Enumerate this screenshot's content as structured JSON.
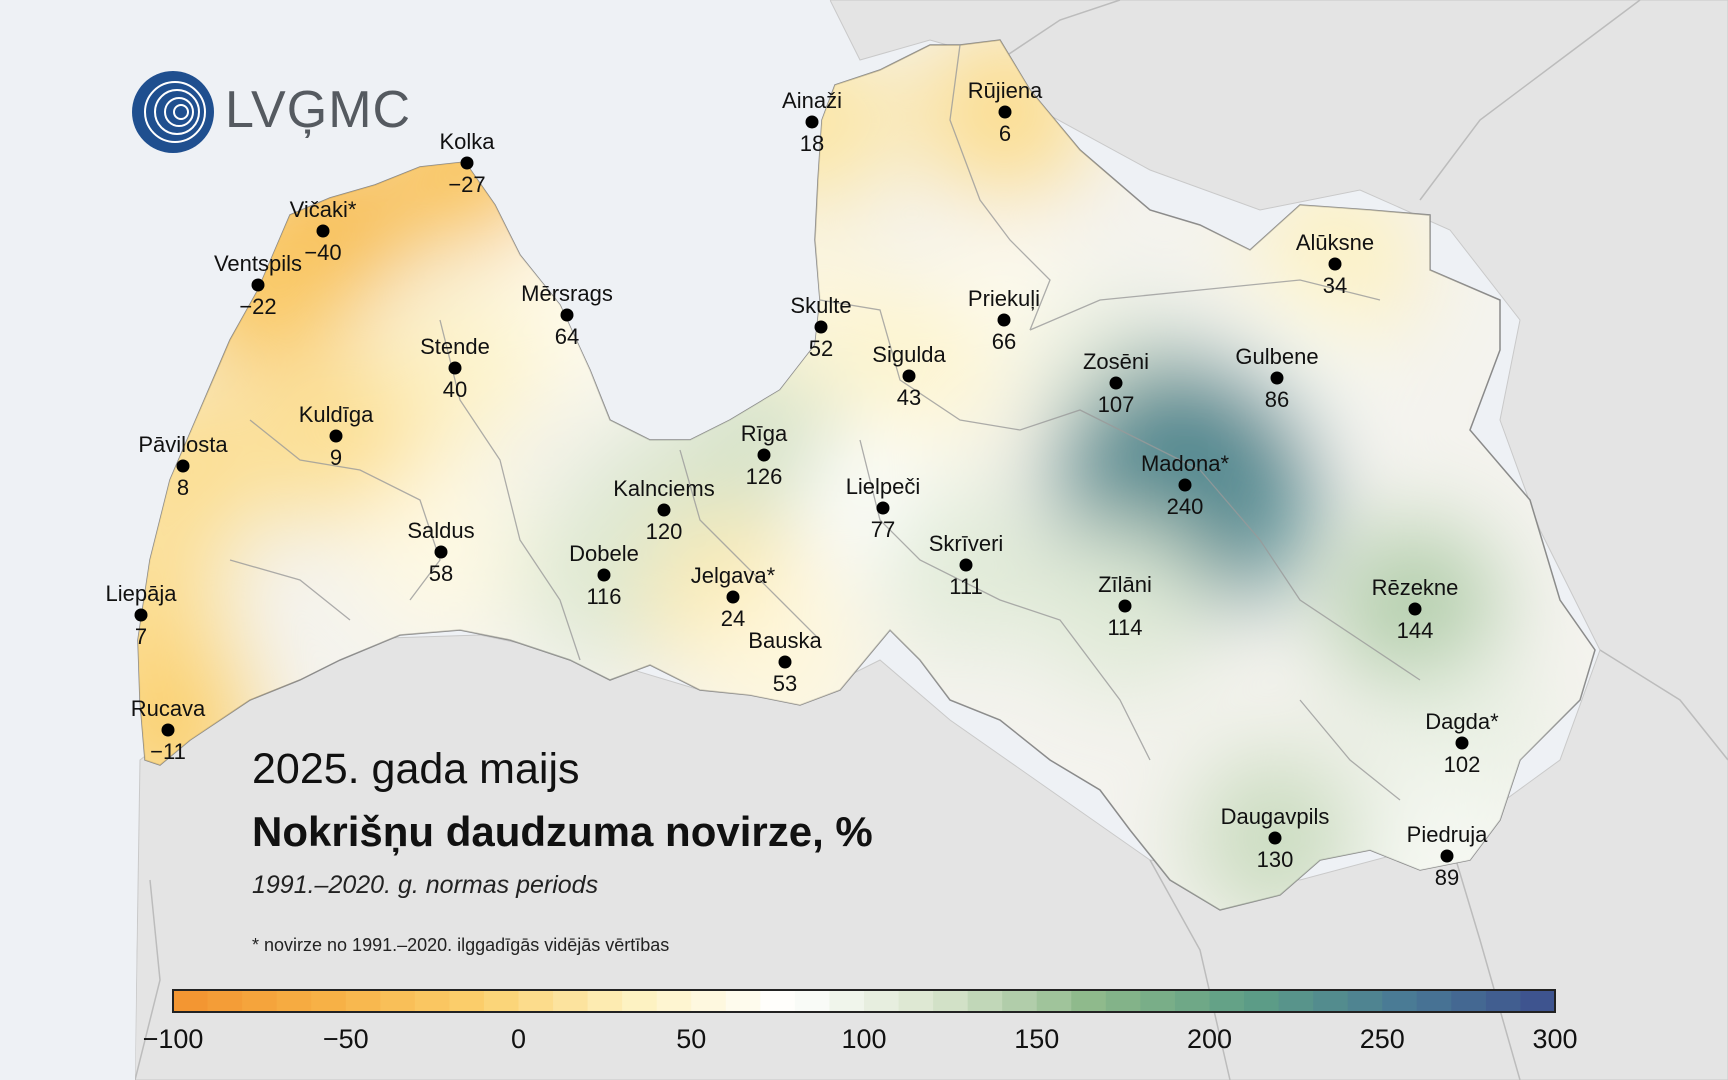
{
  "logo": {
    "text": "LVĢMC"
  },
  "title": "2025. gada maijs",
  "subtitle": "Nokrišņu daudzuma novirze, %",
  "period": "1991.–2020. g. normas periods",
  "footnote": "* novirze no 1991.–2020. ilggadīgās vidējās vērtības",
  "legend": {
    "min": -100,
    "max": 300,
    "ticks": [
      "−100",
      "−50",
      "0",
      "50",
      "100",
      "150",
      "200",
      "250",
      "300"
    ],
    "tick_values": [
      -100,
      -50,
      0,
      50,
      100,
      150,
      200,
      250,
      300
    ],
    "colors": [
      "#f29330",
      "#f7b145",
      "#fbd06e",
      "#fdf1c0",
      "#ffffff",
      "#d7e4cb",
      "#8cb88a",
      "#5e9f86",
      "#4a7b95",
      "#3c4f8e"
    ]
  },
  "stations": [
    {
      "id": "ainazi",
      "name": "Ainaži",
      "value": "18",
      "v": 18
    },
    {
      "id": "rujiena",
      "name": "Rūjiena",
      "value": "6",
      "v": 6
    },
    {
      "id": "kolka",
      "name": "Kolka",
      "value": "−27",
      "v": -27
    },
    {
      "id": "vicaki",
      "name": "Vičaki*",
      "value": "−40",
      "v": -40
    },
    {
      "id": "ventspils",
      "name": "Ventspils",
      "value": "−22",
      "v": -22
    },
    {
      "id": "mersrags",
      "name": "Mērsrags",
      "value": "64",
      "v": 64
    },
    {
      "id": "skulte",
      "name": "Skulte",
      "value": "52",
      "v": 52
    },
    {
      "id": "priekuli",
      "name": "Priekuļi",
      "value": "66",
      "v": 66
    },
    {
      "id": "aluksne",
      "name": "Alūksne",
      "value": "34",
      "v": 34
    },
    {
      "id": "stende",
      "name": "Stende",
      "value": "40",
      "v": 40
    },
    {
      "id": "sigulda",
      "name": "Sigulda",
      "value": "43",
      "v": 43
    },
    {
      "id": "zoseni",
      "name": "Zosēni",
      "value": "107",
      "v": 107
    },
    {
      "id": "gulbene",
      "name": "Gulbene",
      "value": "86",
      "v": 86
    },
    {
      "id": "kuldiga",
      "name": "Kuldīga",
      "value": "9",
      "v": 9
    },
    {
      "id": "pavilosta",
      "name": "Pāvilosta",
      "value": "8",
      "v": 8
    },
    {
      "id": "riga",
      "name": "Rīga",
      "value": "126",
      "v": 126
    },
    {
      "id": "madona",
      "name": "Madona*",
      "value": "240",
      "v": 240
    },
    {
      "id": "kalnciems",
      "name": "Kalnciems",
      "value": "120",
      "v": 120
    },
    {
      "id": "lielpeci",
      "name": "Lielpeči",
      "value": "77",
      "v": 77
    },
    {
      "id": "saldus",
      "name": "Saldus",
      "value": "58",
      "v": 58
    },
    {
      "id": "skriveri",
      "name": "Skrīveri",
      "value": "111",
      "v": 111
    },
    {
      "id": "dobele",
      "name": "Dobele",
      "value": "116",
      "v": 116
    },
    {
      "id": "jelgava",
      "name": "Jelgava*",
      "value": "24",
      "v": 24
    },
    {
      "id": "liepaja",
      "name": "Liepāja",
      "value": "7",
      "v": 7
    },
    {
      "id": "zilani",
      "name": "Zīlāni",
      "value": "114",
      "v": 114
    },
    {
      "id": "rezekne",
      "name": "Rēzekne",
      "value": "144",
      "v": 144
    },
    {
      "id": "bauska",
      "name": "Bauska",
      "value": "53",
      "v": 53
    },
    {
      "id": "rucava",
      "name": "Rucava",
      "value": "−11",
      "v": -11
    },
    {
      "id": "dagda",
      "name": "Dagda*",
      "value": "102",
      "v": 102
    },
    {
      "id": "daugavpils",
      "name": "Daugavpils",
      "value": "130",
      "v": 130
    },
    {
      "id": "piedruja",
      "name": "Piedruja",
      "value": "89",
      "v": 89
    }
  ]
}
